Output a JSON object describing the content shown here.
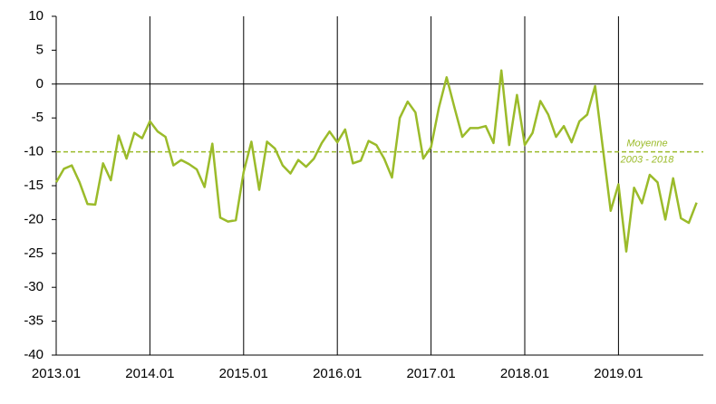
{
  "chart_data": {
    "type": "line",
    "categories": [
      "2013.01",
      null,
      null,
      null,
      null,
      null,
      null,
      null,
      null,
      null,
      null,
      null,
      "2014.01",
      null,
      null,
      null,
      null,
      null,
      null,
      null,
      null,
      null,
      null,
      null,
      "2015.01",
      null,
      null,
      null,
      null,
      null,
      null,
      null,
      null,
      null,
      null,
      null,
      "2016.01",
      null,
      null,
      null,
      null,
      null,
      null,
      null,
      null,
      null,
      null,
      null,
      "2017.01",
      null,
      null,
      null,
      null,
      null,
      null,
      null,
      null,
      null,
      null,
      null,
      "2018.01",
      null,
      null,
      null,
      null,
      null,
      null,
      null,
      null,
      null,
      null,
      null,
      "2019.01",
      null,
      null,
      null,
      null,
      null,
      null,
      null,
      null,
      null,
      null
    ],
    "series": [
      {
        "color": "#9bbb2a",
        "values": [
          -14.5,
          -12.5,
          -12,
          -14.5,
          -17.7,
          -17.8,
          -11.7,
          -14.2,
          -7.6,
          -11,
          -7.2,
          -8,
          -5.5,
          -7,
          -7.8,
          -12,
          -11.2,
          -11.8,
          -12.6,
          -15.2,
          -8.8,
          -19.7,
          -20.3,
          -20.1,
          -13,
          -8.5,
          -15.6,
          -8.5,
          -9.5,
          -12,
          -13.2,
          -11.2,
          -12.2,
          -11,
          -8.7,
          -7,
          -8.6,
          -6.7,
          -11.7,
          -11.3,
          -8.4,
          -9,
          -11,
          -13.8,
          -5,
          -2.6,
          -4.2,
          -11,
          -9.3,
          -3.5,
          1,
          -3.5,
          -7.8,
          -6.5,
          -6.5,
          -6.2,
          -8.7,
          2,
          -9,
          -1.6,
          -9,
          -7.2,
          -2.5,
          -4.5,
          -7.8,
          -6.2,
          -8.6,
          -5.5,
          -4.5,
          -0.3,
          -9.5,
          -18.7,
          -14.8,
          -24.7,
          -15.3,
          -17.6,
          -13.4,
          -14.5,
          -20,
          -13.9,
          -19.8,
          -20.5,
          -17.5
        ]
      }
    ],
    "reference_line": {
      "value": -10,
      "label": [
        "Moyenne",
        "2003 - 2018"
      ],
      "color": "#9bbb2a"
    },
    "ylim": [
      -40,
      10
    ],
    "yticks": [
      -40,
      -35,
      -30,
      -25,
      -20,
      -15,
      -10,
      -5,
      0,
      5,
      10
    ]
  }
}
